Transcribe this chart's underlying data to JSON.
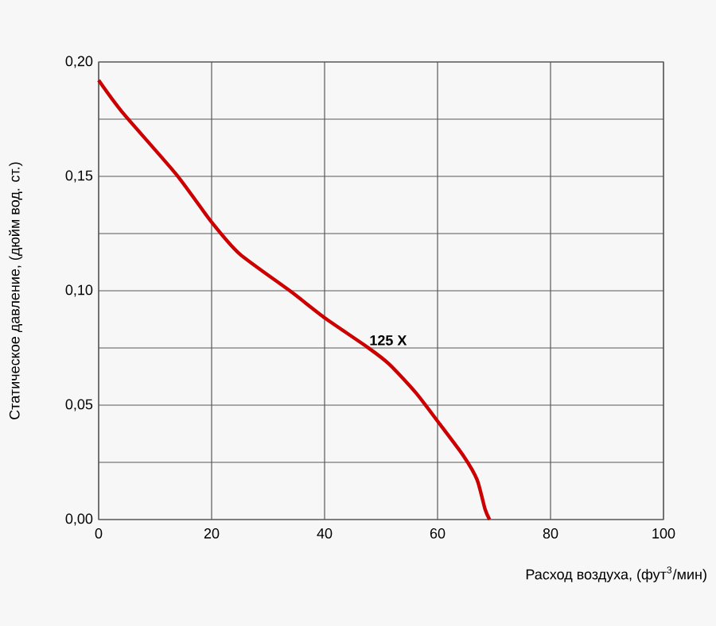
{
  "chart_data": {
    "type": "line",
    "xlabel": "Расход воздуха, (фут$^{3}$/мин)",
    "ylabel": "Статическое давление, (дюйм вод. ст.)",
    "x": [
      0,
      4.2,
      13.7,
      20,
      25,
      34,
      40.1,
      47.6,
      51.4,
      56.1,
      60.4,
      64.6,
      67,
      68.4,
      69.2
    ],
    "series": [
      {
        "name": "125 X",
        "color": "#cc0000",
        "values": [
          0.192,
          0.178,
          0.151,
          0.13,
          0.116,
          0.0997,
          0.088,
          0.0753,
          0.068,
          0.0556,
          0.0417,
          0.0278,
          0.0174,
          0.0046,
          0
        ]
      }
    ],
    "xlim": [
      0,
      100
    ],
    "ylim": [
      0,
      0.2
    ],
    "xticks": [
      0,
      20,
      40,
      60,
      80,
      100
    ],
    "yticks": [
      {
        "value": 0,
        "label": "0,00"
      },
      {
        "value": 0.025,
        "label": null
      },
      {
        "value": 0.05,
        "label": "0,05"
      },
      {
        "value": 0.075,
        "label": null
      },
      {
        "value": 0.1,
        "label": "0,10"
      },
      {
        "value": 0.125,
        "label": null
      },
      {
        "value": 0.15,
        "label": "0,15"
      },
      {
        "value": 0.175,
        "label": null
      },
      {
        "value": 0.2,
        "label": "0,20"
      }
    ],
    "grid": true,
    "marker": "none",
    "line_style": "solid"
  }
}
